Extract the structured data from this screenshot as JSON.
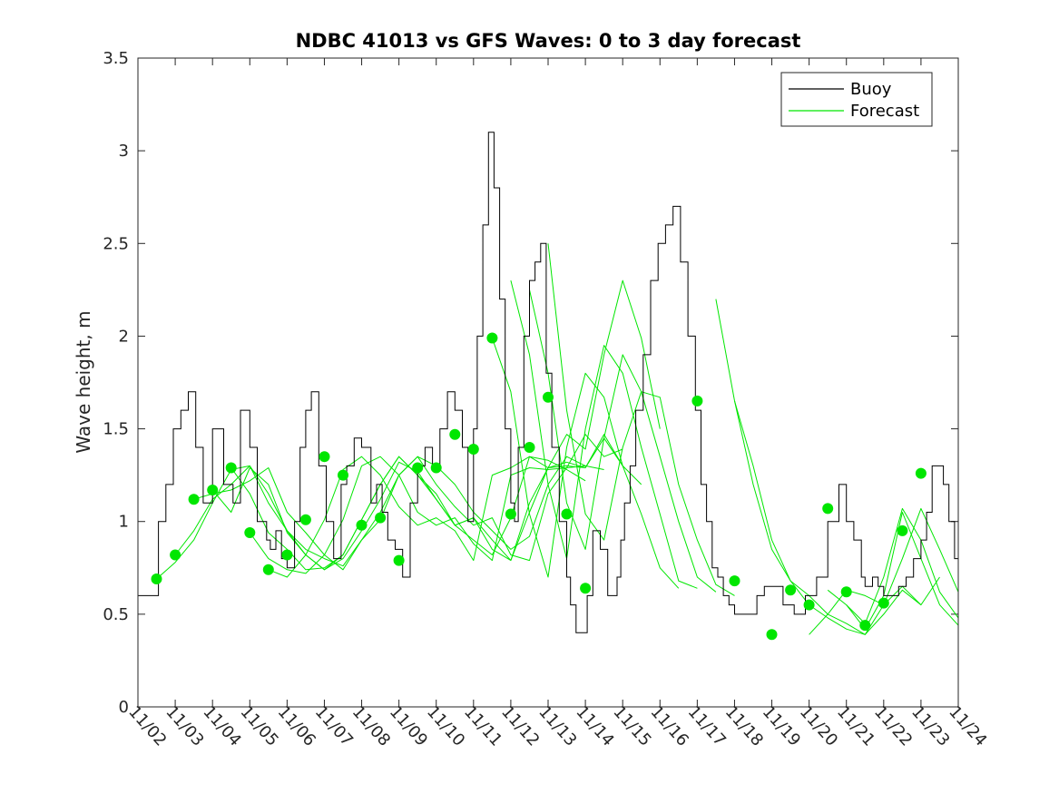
{
  "chart_data": {
    "type": "line",
    "title": "NDBC 41013 vs GFS Waves: 0 to 3 day forecast",
    "xlabel": "",
    "ylabel": "Wave height, m",
    "x_tick_labels": [
      "11/02",
      "11/03",
      "11/04",
      "11/05",
      "11/06",
      "11/07",
      "11/08",
      "11/09",
      "11/10",
      "11/11",
      "11/12",
      "11/13",
      "11/14",
      "11/15",
      "11/16",
      "11/17",
      "11/18",
      "11/19",
      "11/20",
      "11/21",
      "11/22",
      "11/23",
      "11/24"
    ],
    "y_ticks": [
      0,
      0.5,
      1,
      1.5,
      2,
      2.5,
      3,
      3.5
    ],
    "y_tick_labels": [
      "0",
      "0.5",
      "1",
      "1.5",
      "2",
      "2.5",
      "3",
      "3.5"
    ],
    "ylim": [
      0,
      3.5
    ],
    "xlim_days": [
      0,
      22
    ],
    "legend": {
      "location": "top-right",
      "entries": [
        "Buoy",
        "Forecast"
      ]
    },
    "colors": {
      "buoy": "#000000",
      "forecast": "#00e600",
      "markers": "#00e600"
    },
    "buoy": {
      "name": "Buoy",
      "x_days": [
        0,
        0.3,
        0.55,
        0.75,
        0.95,
        1.15,
        1.35,
        1.55,
        1.75,
        2.0,
        2.3,
        2.55,
        2.75,
        3.0,
        3.2,
        3.45,
        3.55,
        3.7,
        3.85,
        4.0,
        4.2,
        4.35,
        4.5,
        4.65,
        4.85,
        5.05,
        5.25,
        5.45,
        5.6,
        5.8,
        6.0,
        6.1,
        6.25,
        6.4,
        6.55,
        6.7,
        6.9,
        7.1,
        7.3,
        7.5,
        7.7,
        7.9,
        8.1,
        8.3,
        8.5,
        8.7,
        8.85,
        9.0,
        9.1,
        9.25,
        9.4,
        9.55,
        9.7,
        9.85,
        10.0,
        10.1,
        10.2,
        10.35,
        10.5,
        10.65,
        10.8,
        10.95,
        11.1,
        11.3,
        11.5,
        11.6,
        11.75,
        11.9,
        12.05,
        12.2,
        12.4,
        12.6,
        12.75,
        12.85,
        12.95,
        13.05,
        13.2,
        13.35,
        13.55,
        13.75,
        13.95,
        14.15,
        14.35,
        14.55,
        14.75,
        14.95,
        15.1,
        15.25,
        15.4,
        15.55,
        15.7,
        15.85,
        16.0,
        16.2,
        16.4,
        16.6,
        16.8,
        17.0,
        17.3,
        17.6,
        17.9,
        18.2,
        18.5,
        18.8,
        19.0,
        19.2,
        19.4,
        19.5,
        19.6,
        19.7,
        19.85,
        20.0,
        20.2,
        20.4,
        20.6,
        20.8,
        21.0,
        21.15,
        21.3,
        21.45,
        21.6,
        21.75,
        21.9,
        22.0
      ],
      "values": [
        0.6,
        0.6,
        1.0,
        1.2,
        1.5,
        1.6,
        1.7,
        1.4,
        1.1,
        1.5,
        1.2,
        1.1,
        1.6,
        1.4,
        1.0,
        0.9,
        0.85,
        0.95,
        0.8,
        0.75,
        1.0,
        1.4,
        1.6,
        1.7,
        1.3,
        1.0,
        0.8,
        1.2,
        1.3,
        1.45,
        1.4,
        1.4,
        1.1,
        1.2,
        1.05,
        0.9,
        0.85,
        0.7,
        1.1,
        1.3,
        1.4,
        1.3,
        1.5,
        1.7,
        1.6,
        1.4,
        1.0,
        1.5,
        2.0,
        2.6,
        3.1,
        2.8,
        2.2,
        1.5,
        1.1,
        1.0,
        1.4,
        2.0,
        2.3,
        2.4,
        2.5,
        1.8,
        1.4,
        1.0,
        0.7,
        0.55,
        0.4,
        0.4,
        0.6,
        0.95,
        0.85,
        0.6,
        0.6,
        0.7,
        0.9,
        1.1,
        1.3,
        1.6,
        1.9,
        2.3,
        2.5,
        2.6,
        2.7,
        2.4,
        2.0,
        1.6,
        1.2,
        1.0,
        0.75,
        0.7,
        0.6,
        0.55,
        0.5,
        0.5,
        0.5,
        0.6,
        0.65,
        0.65,
        0.55,
        0.5,
        0.6,
        0.7,
        1.0,
        1.2,
        1.0,
        0.9,
        0.7,
        0.65,
        0.65,
        0.7,
        0.65,
        0.6,
        0.6,
        0.65,
        0.7,
        0.8,
        0.9,
        1.05,
        1.3,
        1.3,
        1.2,
        1.0,
        0.8,
        0.65
      ]
    },
    "forecast_dots": {
      "x_days": [
        0.5,
        1.0,
        1.5,
        2.0,
        2.5,
        3.0,
        3.5,
        4.0,
        4.5,
        5.0,
        5.5,
        6.0,
        6.5,
        7.0,
        7.5,
        8.0,
        8.5,
        9.0,
        9.5,
        10.0,
        10.5,
        11.0,
        11.5,
        12.0,
        12.5,
        13.0,
        13.5,
        14.0,
        14.5,
        15.0,
        15.5,
        16.0,
        16.5,
        17.0,
        17.5,
        18.0,
        18.5,
        19.0,
        19.5,
        20.0,
        20.5,
        21.0
      ],
      "values": [
        0.69,
        0.82,
        1.12,
        1.17,
        1.29,
        0.94,
        0.74,
        0.82,
        1.01,
        1.35,
        1.25,
        0.98,
        1.02,
        0.79,
        1.29,
        1.29,
        1.47,
        1.39,
        1.99,
        1.04,
        1.4,
        1.67,
        1.04,
        0.64,
        null,
        null,
        null,
        null,
        null,
        1.65,
        null,
        0.68,
        null,
        0.39,
        0.63,
        0.55,
        1.07,
        0.62,
        0.44,
        0.56,
        0.95,
        1.26
      ]
    },
    "forecast_runs": [
      {
        "name": "run1",
        "start_day": 0.5,
        "values": [
          0.69,
          0.78,
          0.9,
          1.1,
          1.28,
          1.3,
          1.15,
          0.95,
          0.85,
          0.8,
          0.76,
          0.9,
          1.05,
          1.25,
          1.35,
          1.3,
          1.2,
          1.05,
          0.95,
          0.85,
          0.92,
          1.2,
          1.35,
          1.3
        ]
      },
      {
        "name": "run2",
        "start_day": 1.0,
        "values": [
          0.82,
          0.95,
          1.12,
          1.2,
          1.3,
          1.1,
          0.95,
          0.82,
          0.74,
          0.8,
          0.95,
          1.12,
          1.32,
          1.27,
          1.12,
          0.98,
          0.9,
          0.82,
          1.02,
          1.35,
          1.33,
          1.28,
          1.22
        ]
      },
      {
        "name": "run3",
        "start_day": 1.5,
        "values": [
          1.12,
          1.15,
          1.17,
          1.22,
          1.29,
          1.05,
          0.94,
          0.82,
          0.74,
          0.9,
          1.01,
          1.25,
          1.35,
          1.2,
          1.08,
          0.98,
          1.02,
          0.82,
          0.79,
          1.15,
          1.29,
          1.3,
          1.28
        ]
      },
      {
        "name": "run4",
        "start_day": 2.0,
        "values": [
          1.17,
          1.05,
          1.29,
          1.2,
          0.94,
          0.82,
          0.74,
          0.82,
          1.01,
          1.2,
          1.35,
          1.25,
          1.15,
          0.98,
          1.02,
          0.85,
          0.79,
          1.1,
          1.29,
          1.3,
          1.29,
          1.45,
          1.3
        ]
      },
      {
        "name": "run5",
        "start_day": 2.5,
        "values": [
          1.29,
          1.15,
          0.94,
          0.85,
          0.74,
          0.75,
          0.82,
          1.01,
          1.2,
          1.35,
          1.25,
          1.12,
          0.98,
          1.02,
          0.9,
          0.79,
          1.05,
          1.29,
          1.32,
          1.29,
          1.47,
          1.3,
          1.2
        ]
      },
      {
        "name": "run6",
        "start_day": 3.0,
        "values": [
          0.94,
          0.8,
          0.74,
          0.72,
          0.82,
          1.01,
          1.3,
          1.35,
          1.25,
          1.05,
          0.98,
          1.02,
          0.88,
          0.79,
          1.25,
          1.29,
          1.28,
          1.29,
          1.47,
          1.35,
          1.39
        ]
      },
      {
        "name": "run7",
        "start_day": 3.5,
        "values": [
          0.74,
          0.7,
          0.82,
          1.01,
          1.28,
          1.35,
          1.25,
          1.08,
          0.98,
          1.02,
          0.95,
          0.79,
          1.25,
          1.29,
          1.35,
          1.29,
          1.47,
          1.39,
          1.9,
          2.3,
          1.99,
          1.5
        ]
      },
      {
        "name": "run8",
        "start_day": 9.5,
        "values": [
          1.99,
          1.7,
          1.04,
          0.7,
          1.4,
          1.8,
          1.67,
          1.3,
          1.04,
          0.75,
          0.64
        ]
      },
      {
        "name": "run9",
        "start_day": 10.0,
        "values": [
          2.3,
          1.9,
          1.2,
          0.8,
          1.5,
          1.95,
          1.8,
          1.4,
          1.04,
          0.68,
          0.64
        ]
      },
      {
        "name": "run10",
        "start_day": 10.5,
        "values": [
          2.25,
          1.8,
          1.1,
          0.85,
          1.45,
          1.9,
          1.7,
          1.35,
          1.0,
          0.7,
          0.62
        ]
      },
      {
        "name": "run11",
        "start_day": 11.0,
        "values": [
          2.5,
          1.6,
          1.04,
          0.9,
          1.4,
          1.7,
          1.67,
          1.2,
          0.9,
          0.66,
          0.6
        ]
      },
      {
        "name": "run12",
        "start_day": 15.5,
        "values": [
          2.2,
          1.65,
          1.3,
          0.9,
          0.68,
          0.6,
          0.5,
          0.45,
          0.39,
          0.5,
          0.63,
          0.55
        ]
      },
      {
        "name": "run13",
        "start_day": 16.0,
        "values": [
          1.65,
          1.2,
          0.85,
          0.68,
          0.55,
          0.48,
          0.42,
          0.39,
          0.55,
          0.65,
          0.55,
          0.7
        ]
      },
      {
        "name": "run14",
        "start_day": 18.0,
        "values": [
          0.39,
          0.5,
          0.63,
          0.6,
          0.55,
          0.8,
          1.07,
          0.85,
          0.62,
          0.5,
          0.44,
          0.5,
          0.56,
          0.75,
          0.95,
          1.2,
          1.26,
          1.1,
          0.9,
          0.7
        ]
      },
      {
        "name": "run15",
        "start_day": 18.5,
        "values": [
          0.63,
          0.55,
          0.45,
          0.7,
          1.07,
          0.9,
          0.62,
          0.48,
          0.44,
          0.56,
          0.7,
          0.95,
          1.2,
          1.26,
          1.25,
          1.0,
          0.75
        ]
      },
      {
        "name": "run16",
        "start_day": 19.0,
        "values": [
          0.55,
          0.42,
          0.6,
          1.05,
          0.8,
          0.55,
          0.44,
          0.55,
          0.75,
          0.95,
          1.26,
          1.3,
          1.1,
          0.85,
          0.65
        ]
      }
    ]
  }
}
